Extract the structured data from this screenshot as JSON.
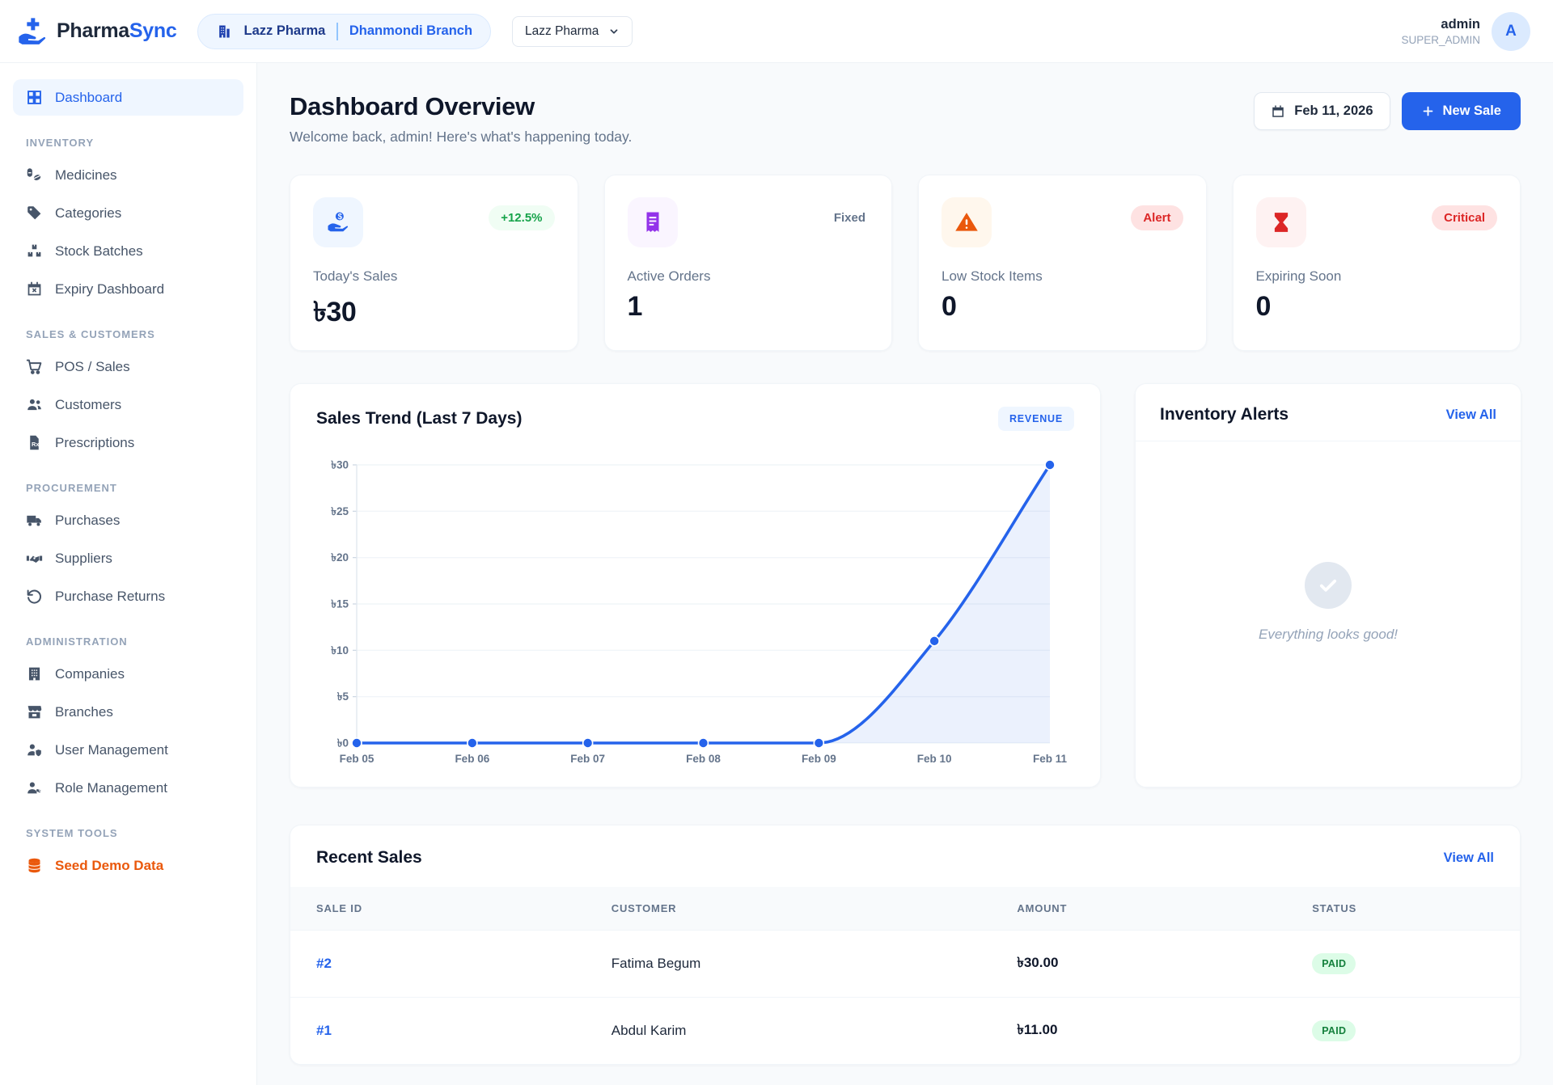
{
  "header": {
    "brand": {
      "name_primary": "Pharma",
      "name_accent": "Sync"
    },
    "context_badge": {
      "company": "Lazz Pharma",
      "branch": "Dhanmondi Branch"
    },
    "company_select": {
      "value": "Lazz Pharma"
    },
    "user": {
      "name": "admin",
      "role": "SUPER_ADMIN",
      "avatar_initial": "A"
    }
  },
  "sidebar": {
    "sections": [
      {
        "label": "",
        "items": [
          {
            "label": "Dashboard",
            "icon": "dashboard-grid-icon",
            "active": true
          }
        ]
      },
      {
        "label": "INVENTORY",
        "items": [
          {
            "label": "Medicines",
            "icon": "pill-icon"
          },
          {
            "label": "Categories",
            "icon": "tag-icon"
          },
          {
            "label": "Stock Batches",
            "icon": "boxes-icon"
          },
          {
            "label": "Expiry Dashboard",
            "icon": "calendar-x-icon"
          }
        ]
      },
      {
        "label": "SALES & CUSTOMERS",
        "items": [
          {
            "label": "POS / Sales",
            "icon": "cart-icon"
          },
          {
            "label": "Customers",
            "icon": "users-icon"
          },
          {
            "label": "Prescriptions",
            "icon": "prescription-file-icon"
          }
        ]
      },
      {
        "label": "PROCUREMENT",
        "items": [
          {
            "label": "Purchases",
            "icon": "truck-icon"
          },
          {
            "label": "Suppliers",
            "icon": "handshake-icon"
          },
          {
            "label": "Purchase Returns",
            "icon": "rotate-ccw-icon"
          }
        ]
      },
      {
        "label": "ADMINISTRATION",
        "items": [
          {
            "label": "Companies",
            "icon": "building-icon"
          },
          {
            "label": "Branches",
            "icon": "store-icon"
          },
          {
            "label": "User Management",
            "icon": "user-shield-icon"
          },
          {
            "label": "Role Management",
            "icon": "user-role-icon"
          }
        ]
      },
      {
        "label": "SYSTEM TOOLS",
        "items": [
          {
            "label": "Seed Demo Data",
            "icon": "database-icon",
            "accent": "orange"
          }
        ]
      }
    ]
  },
  "page": {
    "title": "Dashboard Overview",
    "subtitle": "Welcome back, admin! Here's what's happening today.",
    "date_button": "Feb 11, 2026",
    "new_sale_button": "New Sale"
  },
  "stats": [
    {
      "label": "Today's Sales",
      "value": "৳30",
      "badge": "+12.5%",
      "badge_type": "green",
      "icon": "hand-coins-icon",
      "tile_bg": "#eff6ff",
      "icon_color": "#2563eb"
    },
    {
      "label": "Active Orders",
      "value": "1",
      "badge": "Fixed",
      "badge_type": "plain",
      "icon": "receipt-icon",
      "tile_bg": "#faf5ff",
      "icon_color": "#9333ea"
    },
    {
      "label": "Low Stock Items",
      "value": "0",
      "badge": "Alert",
      "badge_type": "red",
      "icon": "alert-triangle-icon",
      "tile_bg": "#fff7ed",
      "icon_color": "#ea580c"
    },
    {
      "label": "Expiring Soon",
      "value": "0",
      "badge": "Critical",
      "badge_type": "red",
      "icon": "hourglass-icon",
      "tile_bg": "#fef2f2",
      "icon_color": "#dc2626"
    }
  ],
  "chart_data": {
    "type": "line",
    "title": "Sales Trend (Last 7 Days)",
    "legend_badge": "REVENUE",
    "x": [
      "Feb 05",
      "Feb 06",
      "Feb 07",
      "Feb 08",
      "Feb 09",
      "Feb 10",
      "Feb 11"
    ],
    "series": [
      {
        "name": "Revenue",
        "values": [
          0,
          0,
          0,
          0,
          0,
          11,
          30
        ]
      }
    ],
    "ylim": [
      0,
      30
    ],
    "ytick_step": 5,
    "ytick_prefix": "৳",
    "grid": true,
    "area_fill": true,
    "line_color": "#2563eb"
  },
  "inventory_alerts": {
    "title": "Inventory Alerts",
    "view_all": "View All",
    "empty_message": "Everything looks good!"
  },
  "recent_sales": {
    "title": "Recent Sales",
    "view_all": "View All",
    "columns": [
      "SALE ID",
      "CUSTOMER",
      "AMOUNT",
      "STATUS"
    ],
    "rows": [
      {
        "sale_id": "#2",
        "customer": "Fatima Begum",
        "amount": "৳30.00",
        "status": "PAID"
      },
      {
        "sale_id": "#1",
        "customer": "Abdul Karim",
        "amount": "৳11.00",
        "status": "PAID"
      }
    ]
  }
}
